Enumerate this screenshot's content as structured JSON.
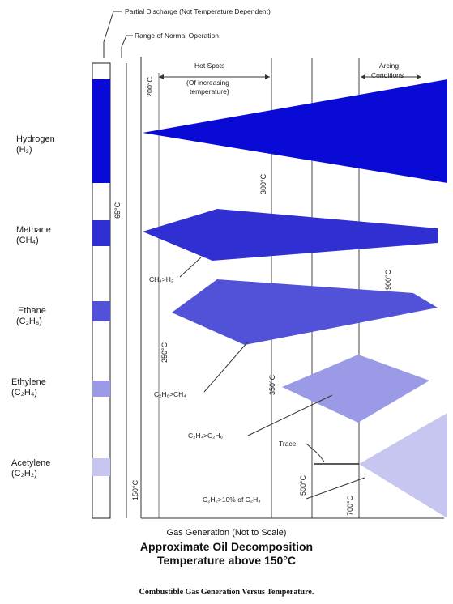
{
  "legend": {
    "partial_discharge": "Partial Discharge (Not Temperature Dependent)",
    "normal_operation": "Range of Normal Operation"
  },
  "regions": {
    "hot_spots_line1": "Hot Spots",
    "hot_spots_line2": "(Of increasing",
    "hot_spots_line3": "temperature)",
    "arcing_line1": "Arcing",
    "arcing_line2": "Conditions"
  },
  "gases": [
    {
      "name": "Hydrogen",
      "formula": "(H₂)"
    },
    {
      "name": "Methane",
      "formula": "(CH₄)"
    },
    {
      "name": "Ethane",
      "formula": "(C₂H₆)"
    },
    {
      "name": "Ethylene",
      "formula": "(C₂H₄)"
    },
    {
      "name": "Acetylene",
      "formula": "(C₂H₂)"
    }
  ],
  "temperatures": {
    "t65": "65°C",
    "t150": "150°C",
    "t200": "200°C",
    "t250": "250°C",
    "t300": "300°C",
    "t350": "350°C",
    "t500": "500°C",
    "t700": "700°C",
    "t900": "900°C"
  },
  "annotations": {
    "ch4_h2": "CH₄>H₂",
    "c2h6_ch4": "C₂H₆>CH₄",
    "c2h4_c2h6": "C₂H₄>C₂H₆",
    "trace": "Trace",
    "c2h2_c2h4": "C₂H₂>10% of C₂H₄"
  },
  "x_axis_label": "Gas Generation (Not to Scale)",
  "title_line1": "Approximate Oil Decomposition",
  "title_line2": "Temperature above 150°C",
  "caption": "Combustible Gas Generation Versus Temperature.",
  "colors": {
    "hydrogen": "#0a0ad6",
    "methane": "#3030d2",
    "ethane": "#5252d8",
    "ethylene": "#9a9ae6",
    "acetylene": "#c6c6f0"
  }
}
